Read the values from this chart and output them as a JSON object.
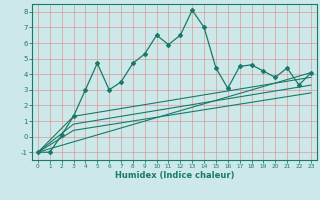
{
  "xlabel": "Humidex (Indice chaleur)",
  "bg_color": "#cce8e8",
  "grid_color": "#b0cccc",
  "line_color": "#1a7a6a",
  "xlim": [
    -0.5,
    23.5
  ],
  "ylim": [
    -1.5,
    8.5
  ],
  "xticks": [
    0,
    1,
    2,
    3,
    4,
    5,
    6,
    7,
    8,
    9,
    10,
    11,
    12,
    13,
    14,
    15,
    16,
    17,
    18,
    19,
    20,
    21,
    22,
    23
  ],
  "yticks": [
    -1,
    0,
    1,
    2,
    3,
    4,
    5,
    6,
    7,
    8
  ],
  "main_x": [
    0,
    1,
    2,
    3,
    4,
    5,
    6,
    7,
    8,
    9,
    10,
    11,
    12,
    13,
    14,
    15,
    16,
    17,
    18,
    19,
    20,
    21,
    22,
    23
  ],
  "main_y": [
    -1,
    -1,
    0.1,
    1.3,
    3.0,
    4.7,
    3.0,
    3.5,
    4.7,
    5.3,
    6.5,
    5.9,
    6.5,
    8.1,
    7.0,
    4.4,
    3.1,
    4.5,
    4.6,
    4.2,
    3.8,
    4.4,
    3.3,
    4.1
  ],
  "trend1_x": [
    0,
    23
  ],
  "trend1_y": [
    -1.0,
    4.1
  ],
  "trend2_x": [
    0,
    3,
    23
  ],
  "trend2_y": [
    -1.0,
    1.3,
    3.8
  ],
  "trend3_x": [
    0,
    3,
    23
  ],
  "trend3_y": [
    -1.0,
    0.8,
    3.3
  ],
  "trend4_x": [
    0,
    3,
    23
  ],
  "trend4_y": [
    -1.0,
    0.4,
    2.8
  ]
}
